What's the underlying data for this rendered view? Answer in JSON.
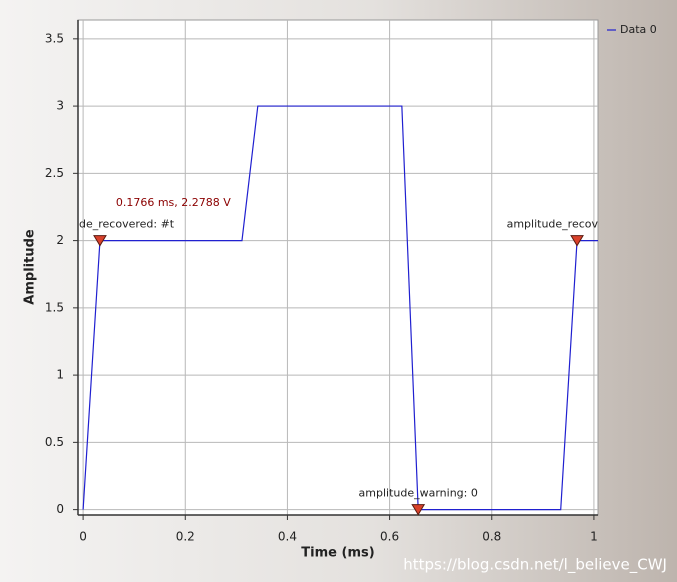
{
  "chart_data": {
    "type": "line",
    "xlabel": "Time (ms)",
    "ylabel": "Amplitude",
    "x": [
      0,
      0.033,
      0.311,
      0.342,
      0.624,
      0.656,
      0.935,
      0.967,
      1.008
    ],
    "series": [
      {
        "name": "Data 0",
        "color": "#2020d0",
        "values": [
          0,
          2,
          2,
          3,
          3,
          0,
          0,
          2,
          2
        ]
      }
    ],
    "xlim": [
      -0.01,
      1.008
    ],
    "ylim": [
      -0.04,
      3.64
    ],
    "xticks": [
      0,
      0.2,
      0.4,
      0.6,
      0.8,
      1
    ],
    "yticks": [
      0,
      0.5,
      1,
      1.5,
      2,
      2.5,
      3,
      3.5
    ],
    "grid": true,
    "legend": "top-right",
    "annotation": {
      "text": "0.1766 ms, 2.2788 V",
      "x": 0.1766,
      "y": 2.2788,
      "color": "#8b0000"
    },
    "markers": [
      {
        "label": "de_recovered: #t",
        "x": 0.033,
        "y": 2
      },
      {
        "label": "amplitude_warning: 0",
        "x": 0.656,
        "y": 0
      },
      {
        "label": "amplitude_recov",
        "x": 0.967,
        "y": 2
      }
    ],
    "marker_color": "#d9412b",
    "watermark": "https://blog.csdn.net/l_believe_CWJ"
  }
}
